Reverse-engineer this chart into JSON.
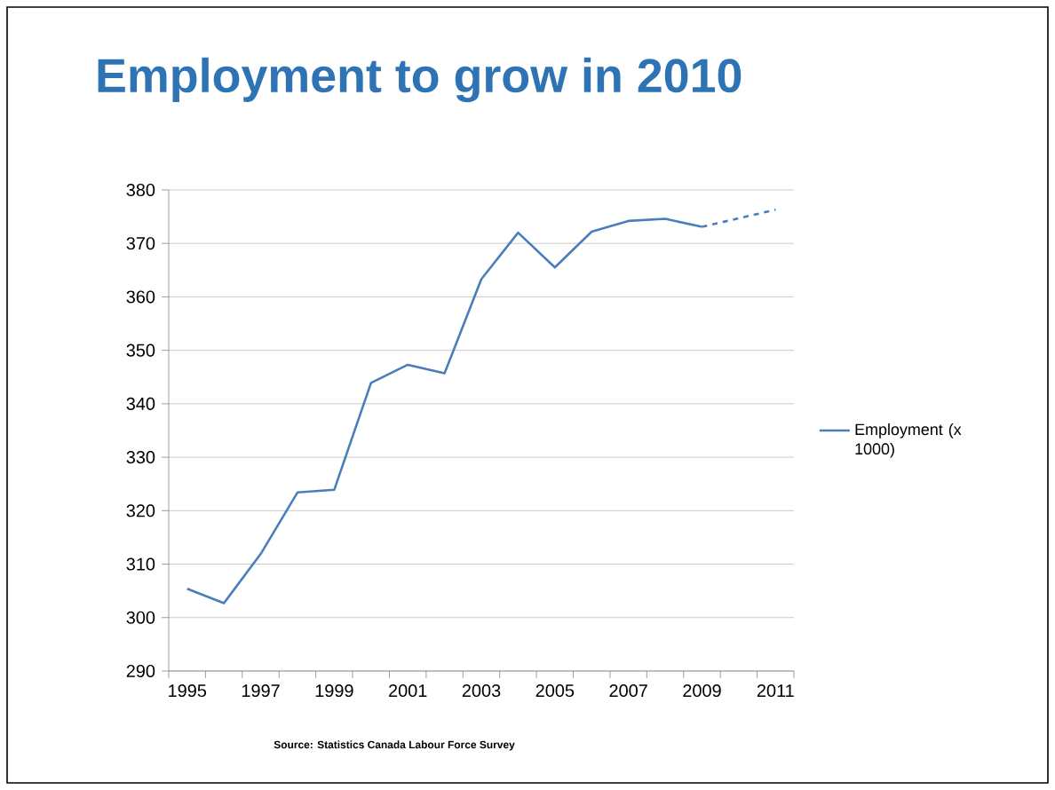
{
  "chart_data": {
    "type": "line",
    "title": "Employment to grow in 2010",
    "categories": [
      "1995",
      null,
      "1997",
      null,
      "1999",
      null,
      "2001",
      null,
      "2003",
      null,
      "2005",
      null,
      "2007",
      null,
      "2009",
      null,
      "2011"
    ],
    "series": [
      {
        "name": "Employment (x 1000)",
        "color": "#4a7ebb",
        "line_style": "solid",
        "values": [
          305.4,
          302.7,
          311.9,
          323.4,
          323.9,
          343.9,
          347.3,
          345.7,
          363.3,
          372.0,
          365.5,
          372.2,
          374.2,
          374.6,
          373.1,
          null,
          null
        ]
      },
      {
        "color": "#4a7ebb",
        "line_style": "dashed",
        "values": [
          null,
          null,
          null,
          null,
          null,
          null,
          null,
          null,
          null,
          null,
          null,
          null,
          null,
          null,
          373.1,
          374.7,
          376.3
        ]
      }
    ],
    "ylim": [
      290,
      380
    ],
    "yticks": [
      290,
      300,
      310,
      320,
      330,
      340,
      350,
      360,
      370,
      380
    ],
    "grid": "y",
    "legend": "right",
    "annotations": [
      "Source: Statistics Canada Labour Force Survey"
    ]
  }
}
